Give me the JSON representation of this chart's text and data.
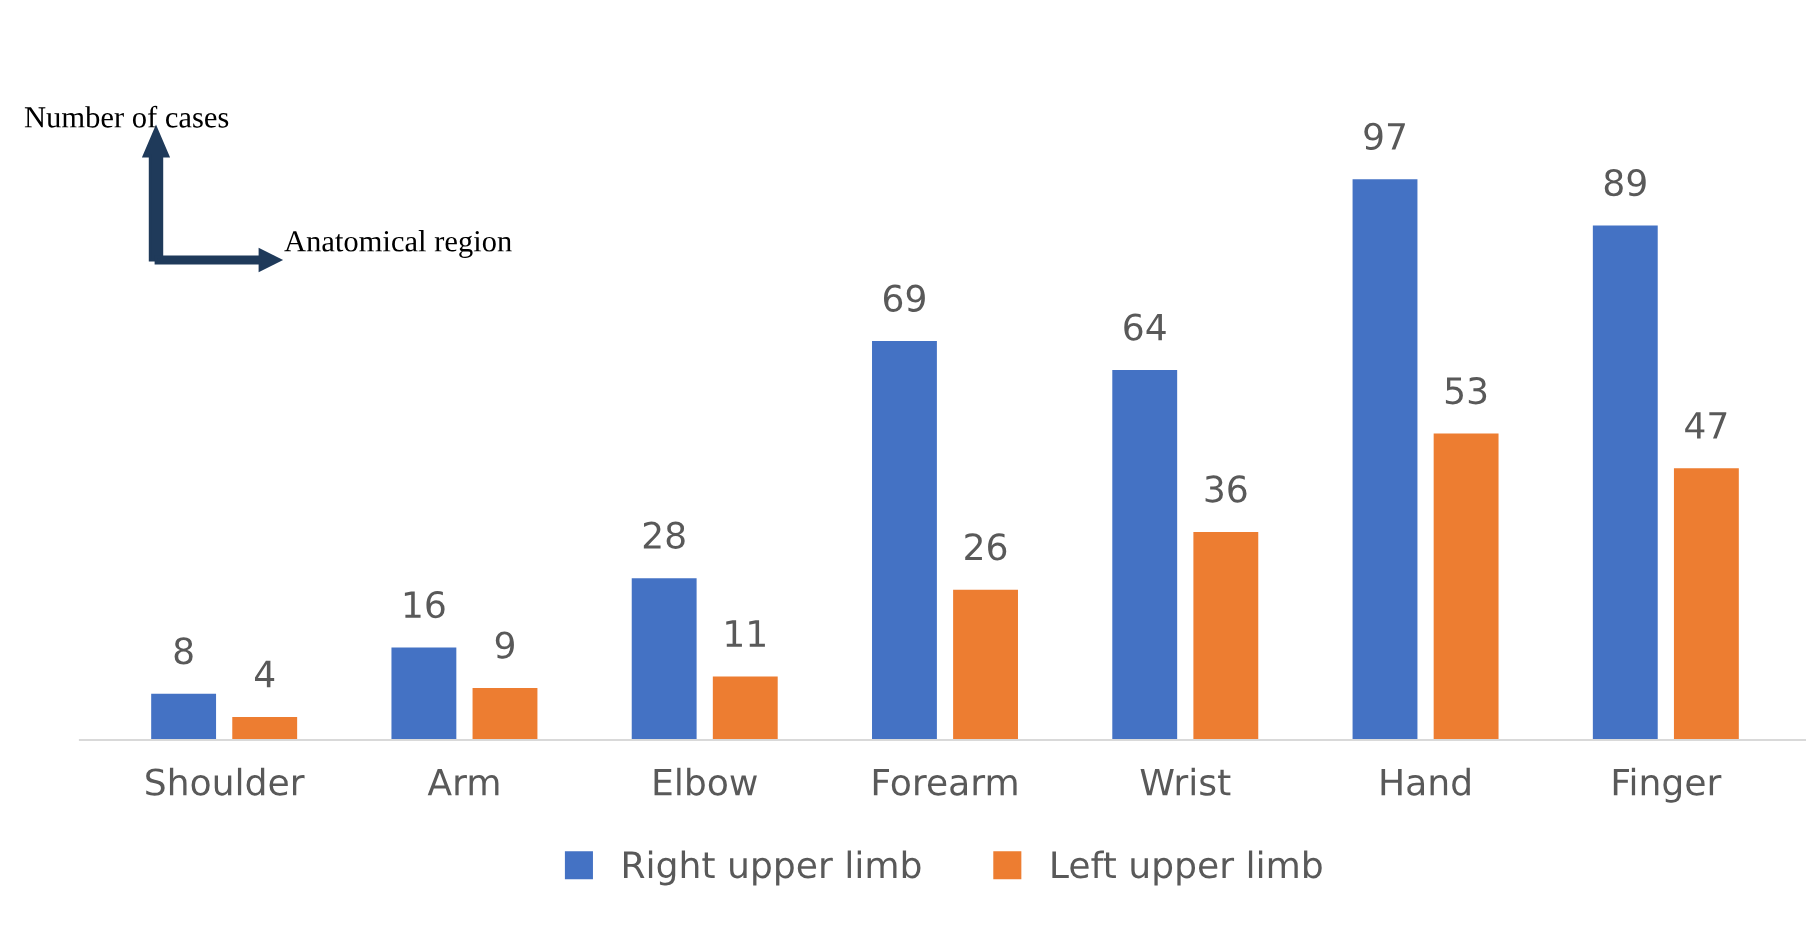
{
  "chart_data": {
    "type": "bar",
    "xlabel": "Anatomical region",
    "ylabel": "Number of cases",
    "categories": [
      "Shoulder",
      "Arm",
      "Elbow",
      "Forearm",
      "Wrist",
      "Hand",
      "Finger"
    ],
    "series": [
      {
        "name": "Right upper limb",
        "color": "#4472c4",
        "values": [
          8,
          16,
          28,
          69,
          64,
          97,
          89
        ]
      },
      {
        "name": "Left upper limb",
        "color": "#ed7d31",
        "values": [
          4,
          9,
          11,
          26,
          36,
          53,
          47
        ]
      }
    ],
    "data_labels": true,
    "legend": "bottom",
    "grid": false
  }
}
